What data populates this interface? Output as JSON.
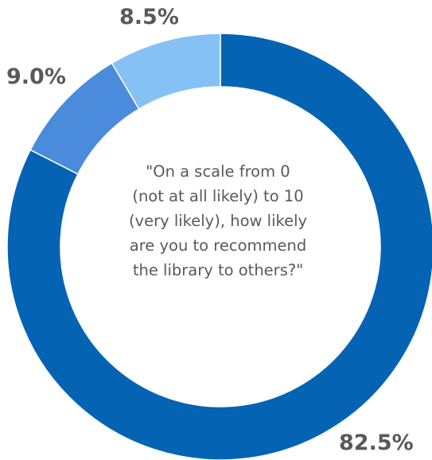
{
  "chart_data": {
    "type": "pie",
    "variant": "donut",
    "categories": [
      "82.5%",
      "9.0%",
      "8.5%"
    ],
    "values": [
      82.5,
      9.0,
      8.5
    ],
    "colors": [
      "#0563B4",
      "#4A8BDB",
      "#85C1F5"
    ],
    "data_labels": [
      "82.5%",
      "9.0%",
      "8.5%"
    ],
    "center_text_lines": [
      "\"On a scale from 0",
      "(not at all likely) to 10",
      "(very likely), how likely",
      "are you to recommend",
      "the library to others?\""
    ],
    "start_angle_deg": 0,
    "direction": "clockwise",
    "legend": "none"
  }
}
